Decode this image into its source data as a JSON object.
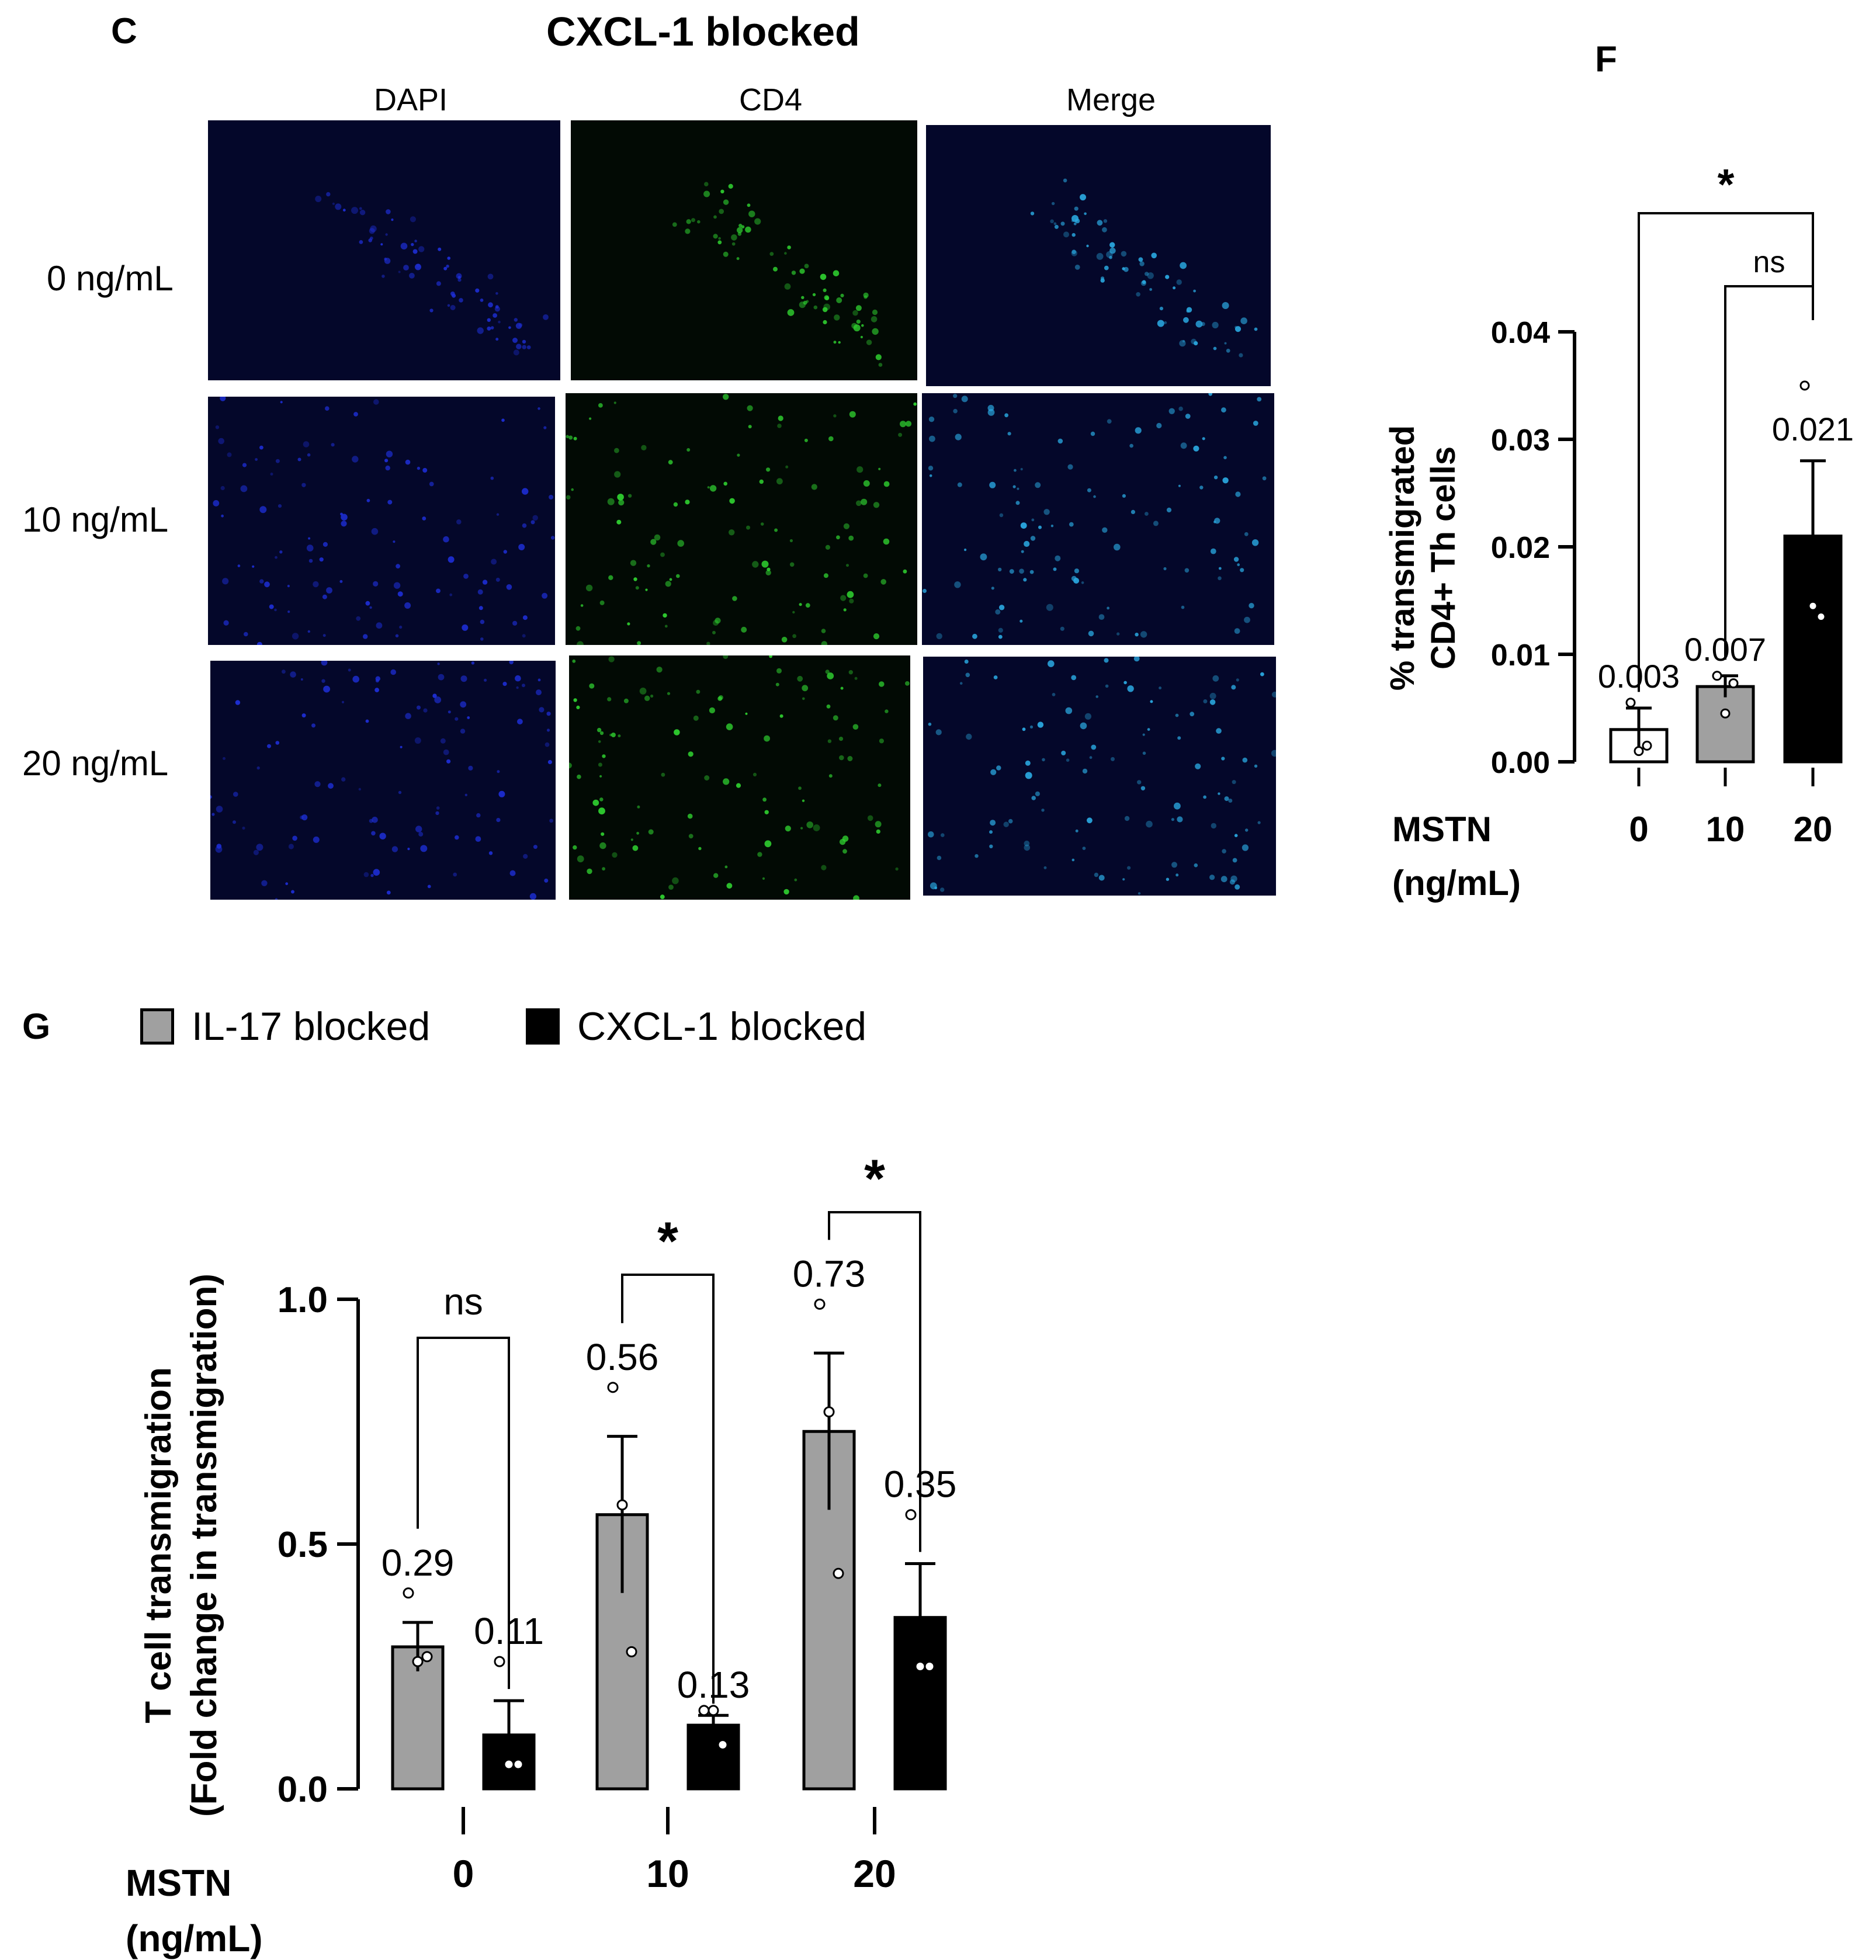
{
  "panel_c": {
    "letter": "C",
    "title": "CXCL-1 blocked",
    "columns": [
      "DAPI",
      "CD4",
      "Merge"
    ],
    "rows": [
      "0 ng/mL",
      "10 ng/mL",
      "20 ng/mL"
    ],
    "channel_colors": {
      "DAPI": "#1e2fd8",
      "CD4": "#2fd030",
      "Merge": "#2aa8e0"
    }
  },
  "panel_f_letter": "F",
  "panel_g_letter": "G",
  "chart_data": [
    {
      "id": "F",
      "type": "bar",
      "categories": [
        "0",
        "10",
        "20"
      ],
      "xlabel": [
        "MSTN",
        "(ng/mL)"
      ],
      "ylabel": [
        "% transmigrated",
        "CD4+ Th cells"
      ],
      "ylim": [
        0,
        0.04
      ],
      "yticks": [
        "0.00",
        "0.01",
        "0.02",
        "0.03",
        "0.04"
      ],
      "ytick_values": [
        0,
        0.01,
        0.02,
        0.03,
        0.04
      ],
      "values": [
        0.003,
        0.007,
        0.021
      ],
      "value_labels": [
        "0.003",
        "0.007",
        "0.021"
      ],
      "errors": [
        0.002,
        0.001,
        0.007
      ],
      "bar_colors": [
        "#ffffff",
        "#a0a0a0",
        "#000000"
      ],
      "points": [
        [
          0.0055,
          0.001,
          0.0015
        ],
        [
          0.008,
          0.0045,
          0.0073
        ],
        [
          0.035,
          0.0145,
          0.0135
        ]
      ],
      "significance": [
        {
          "from": 0,
          "to": 2,
          "label": "*"
        },
        {
          "from": 1,
          "to": 2,
          "label": "ns"
        }
      ]
    },
    {
      "id": "G",
      "type": "bar",
      "categories": [
        "0",
        "10",
        "20"
      ],
      "xlabel": [
        "MSTN",
        "(ng/mL)"
      ],
      "ylabel": [
        "T cell transmigration",
        "(Fold change in transmigration)"
      ],
      "ylim": [
        0,
        1.0
      ],
      "yticks": [
        "0.0",
        "0.5",
        "1.0"
      ],
      "ytick_values": [
        0,
        0.5,
        1.0
      ],
      "legend_position": "top-left",
      "series": [
        {
          "name": "IL-17 blocked",
          "color": "#a0a0a0",
          "values": [
            0.29,
            0.56,
            0.73
          ],
          "value_labels": [
            "0.29",
            "0.56",
            "0.73"
          ],
          "errors": [
            0.05,
            0.16,
            0.16
          ],
          "points": [
            [
              0.4,
              0.26,
              0.27
            ],
            [
              0.82,
              0.58,
              0.28
            ],
            [
              0.99,
              0.77,
              0.44
            ]
          ]
        },
        {
          "name": "CXCL-1 blocked",
          "color": "#000000",
          "values": [
            0.11,
            0.13,
            0.35
          ],
          "value_labels": [
            "0.11",
            "0.13",
            "0.35"
          ],
          "errors": [
            0.07,
            0.02,
            0.11
          ],
          "points": [
            [
              0.26,
              0.05,
              0.05
            ],
            [
              0.16,
              0.16,
              0.09
            ],
            [
              0.56,
              0.25,
              0.25
            ]
          ]
        }
      ],
      "significance": [
        {
          "category": 0,
          "label": "ns"
        },
        {
          "category": 1,
          "label": "*"
        },
        {
          "category": 2,
          "label": "*"
        }
      ]
    }
  ]
}
